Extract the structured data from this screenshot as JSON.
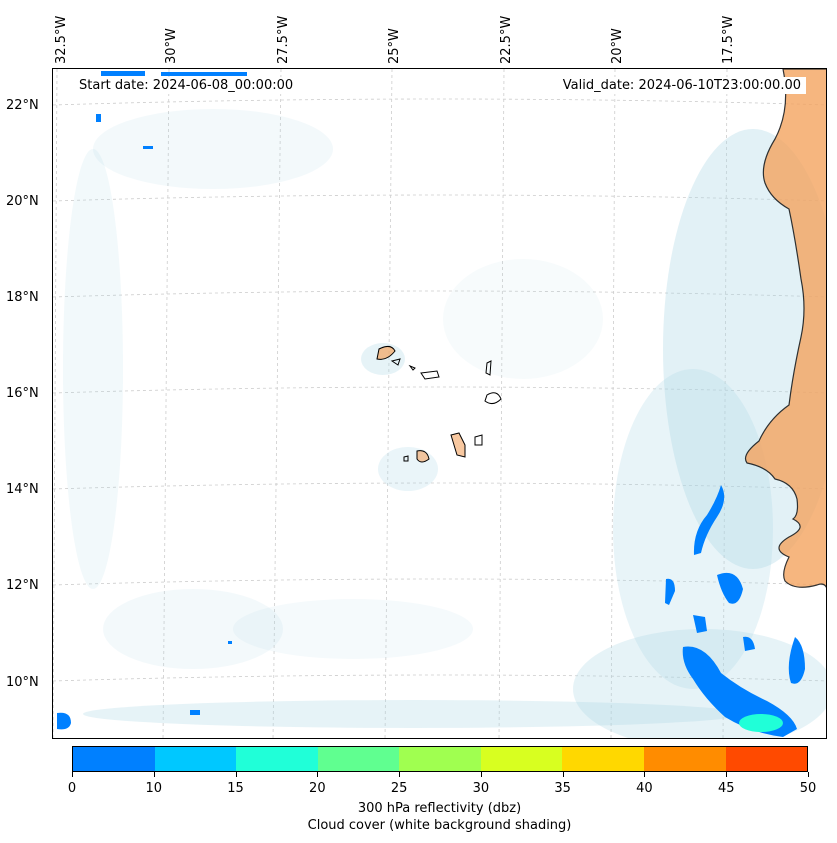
{
  "map": {
    "start_date": "Start date: 2024-06-08_00:00:00",
    "valid_date": "Valid_date: 2024-06-10T23:00:00.00",
    "longitude_labels": [
      "32.5°W",
      "30°W",
      "27.5°W",
      "25°W",
      "22.5°W",
      "20°W",
      "17.5°W"
    ],
    "latitude_labels": [
      "22°N",
      "20°N",
      "18°N",
      "16°N",
      "14°N",
      "12°N",
      "10°N"
    ],
    "land_color": "#f4a460",
    "cloud_color": "#add8e6"
  },
  "colorbar": {
    "ticks": [
      "0",
      "10",
      "15",
      "20",
      "25",
      "30",
      "35",
      "40",
      "45",
      "50"
    ],
    "colors": [
      "#0080ff",
      "#00c8ff",
      "#20ffd8",
      "#60ff90",
      "#a0ff50",
      "#d8ff20",
      "#ffd800",
      "#ff8c00",
      "#ff4a00"
    ],
    "label_line1": "300 hPa reflectivity (dbz)",
    "label_line2": "Cloud cover (white background shading)"
  }
}
